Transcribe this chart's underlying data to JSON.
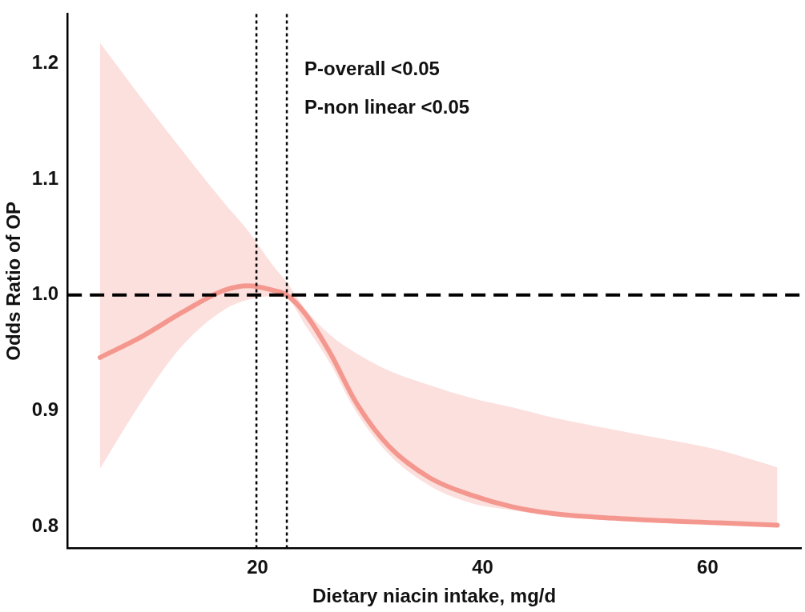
{
  "chart_data": {
    "type": "line",
    "xlabel": "Dietary niacin intake, mg/d",
    "ylabel": "Odds Ratio of OP",
    "xlim": [
      3.1,
      68.3
    ],
    "xticks": [
      20,
      40,
      60
    ],
    "ylim": [
      0.781,
      1.243
    ],
    "yticks": [
      0.8,
      0.9,
      {
        "value": 1.0,
        "label": "1.0"
      },
      1.1,
      1.2
    ],
    "grid": false,
    "legend": false,
    "line_style": "solid",
    "marker": "none",
    "series": [
      {
        "color": "#f4978e",
        "x": [
          6.0,
          9.7,
          13.3,
          17.0,
          19.2,
          21.4,
          22.6,
          24.3,
          26.5,
          28.7,
          31.6,
          35.3,
          39.0,
          42.6,
          46.3,
          53.6,
          61.0,
          66.2
        ],
        "values": [
          0.946,
          0.964,
          0.985,
          1.004,
          1.008,
          1.004,
          1.0,
          0.983,
          0.949,
          0.908,
          0.87,
          0.842,
          0.827,
          0.817,
          0.811,
          0.806,
          0.803,
          0.801
        ],
        "upper": [
          1.218,
          1.17,
          1.125,
          1.08,
          1.055,
          1.025,
          1.011,
          0.987,
          0.965,
          0.95,
          0.935,
          0.922,
          0.911,
          0.903,
          0.894,
          0.88,
          0.866,
          0.851
        ],
        "lower": [
          0.85,
          0.908,
          0.956,
          0.987,
          0.996,
          0.999,
          0.997,
          0.973,
          0.94,
          0.9,
          0.863,
          0.835,
          0.82,
          0.814,
          0.809,
          0.804,
          0.801,
          0.8
        ]
      }
    ],
    "ref_lines": [
      {
        "axis": "y",
        "value": 1.0,
        "color": "#000000",
        "line_style": "dashed"
      },
      {
        "axis": "x",
        "value": 19.9,
        "color": "#000000",
        "line_style": "dotted"
      },
      {
        "axis": "x",
        "value": 22.6,
        "color": "#000000",
        "line_style": "dotted"
      }
    ],
    "annotations": [
      "P-overall <0.05",
      "P-non linear <0.05"
    ]
  }
}
